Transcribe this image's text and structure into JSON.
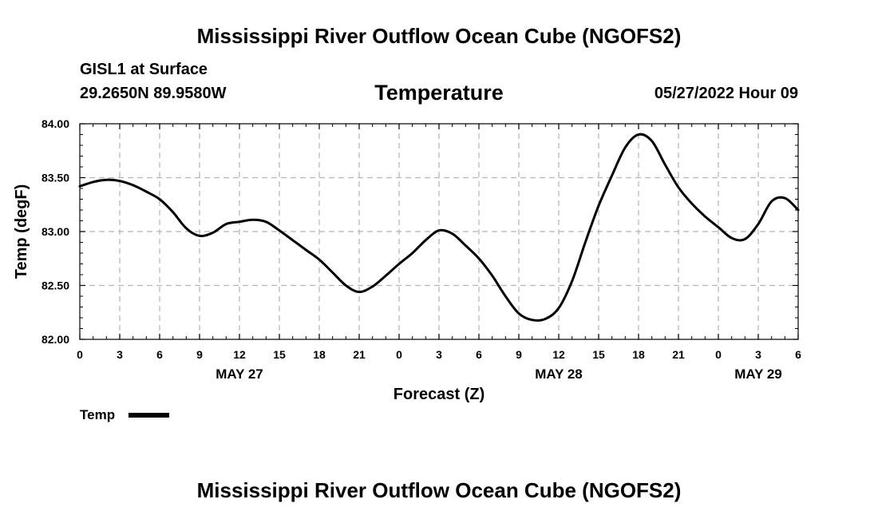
{
  "header": {
    "title": "Mississippi River Outflow Ocean Cube (NGOFS2)",
    "station": "GISL1 at Surface",
    "coords": "29.2650N  89.9580W",
    "variable": "Temperature",
    "datetime": "05/27/2022 Hour 09"
  },
  "footer": {
    "title": "Mississippi River Outflow Ocean Cube (NGOFS2)"
  },
  "legend": {
    "label": "Temp"
  },
  "chart_data": {
    "type": "line",
    "title": "Temperature",
    "xlabel": "Forecast (Z)",
    "ylabel": "Temp (degF)",
    "ylim": [
      82.0,
      84.0
    ],
    "xlim": [
      0,
      54
    ],
    "grid": true,
    "y_ticks": [
      82.0,
      82.5,
      83.0,
      83.5,
      84.0
    ],
    "y_tick_labels": [
      "82.00",
      "82.50",
      "83.00",
      "83.50",
      "84.00"
    ],
    "x_ticks": [
      0,
      3,
      6,
      9,
      12,
      15,
      18,
      21,
      24,
      27,
      30,
      33,
      36,
      39,
      42,
      45,
      48,
      51,
      54
    ],
    "x_tick_labels": [
      "0",
      "3",
      "6",
      "9",
      "12",
      "15",
      "18",
      "21",
      "0",
      "3",
      "6",
      "9",
      "12",
      "15",
      "18",
      "21",
      "0",
      "3",
      "6"
    ],
    "date_labels": [
      {
        "hour": 12,
        "label": "MAY 27"
      },
      {
        "hour": 36,
        "label": "MAY 28"
      },
      {
        "hour": 51,
        "label": "MAY 29"
      }
    ],
    "series": [
      {
        "name": "Temp",
        "color": "#000000",
        "x": [
          0,
          1,
          2,
          3,
          4,
          5,
          6,
          7,
          8,
          9,
          10,
          11,
          12,
          13,
          14,
          15,
          16,
          17,
          18,
          19,
          20,
          21,
          22,
          23,
          24,
          25,
          26,
          27,
          28,
          29,
          30,
          31,
          32,
          33,
          34,
          35,
          36,
          37,
          38,
          39,
          40,
          41,
          42,
          43,
          44,
          45,
          46,
          47,
          48,
          49,
          50,
          51,
          52,
          53,
          54
        ],
        "values": [
          83.42,
          83.46,
          83.48,
          83.47,
          83.43,
          83.37,
          83.3,
          83.18,
          83.03,
          82.96,
          82.99,
          83.07,
          83.09,
          83.11,
          83.09,
          83.01,
          82.92,
          82.83,
          82.74,
          82.62,
          82.5,
          82.44,
          82.49,
          82.59,
          82.7,
          82.8,
          82.92,
          83.01,
          82.98,
          82.87,
          82.75,
          82.59,
          82.4,
          82.24,
          82.18,
          82.19,
          82.29,
          82.54,
          82.9,
          83.24,
          83.52,
          83.78,
          83.9,
          83.84,
          83.62,
          83.41,
          83.26,
          83.14,
          83.04,
          82.94,
          82.93,
          83.07,
          83.28,
          83.31,
          83.2
        ]
      }
    ]
  }
}
